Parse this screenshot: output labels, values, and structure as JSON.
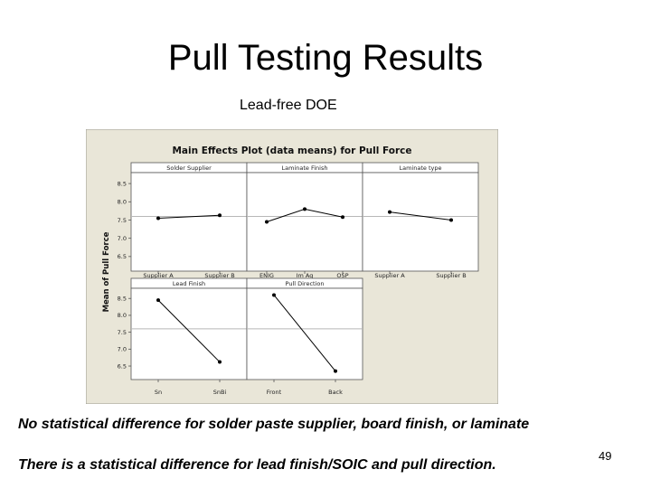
{
  "slide": {
    "title": "Pull Testing Results",
    "subtitle": "Lead-free DOE",
    "note1": "No statistical difference for solder paste supplier, board finish, or laminate",
    "note2": "There is a statistical difference for lead finish/SOIC and pull direction.",
    "page_number": "49"
  },
  "colors": {
    "panel_background": "#e9e6d8",
    "plot_background": "#ffffff",
    "grand_mean_line": "#b8b8b8",
    "line": "#000000"
  },
  "chart_data": {
    "type": "line",
    "title": "Main Effects Plot (data means) for Pull Force",
    "ylabel": "Mean of Pull Force",
    "ylim": [
      6.1,
      8.8
    ],
    "yticks": [
      "6.5",
      "7.0",
      "7.5",
      "8.0",
      "8.5"
    ],
    "grand_mean": 7.6,
    "grid": false,
    "panels": [
      {
        "name": "Solder Supplier",
        "categories": [
          "Supplier A",
          "Supplier B"
        ],
        "values": [
          7.55,
          7.63
        ]
      },
      {
        "name": "Laminate Finish",
        "categories": [
          "ENIG",
          "Im Ag",
          "OSP"
        ],
        "values": [
          7.45,
          7.8,
          7.58
        ]
      },
      {
        "name": "Laminate type",
        "categories": [
          "Supplier A",
          "Supplier B"
        ],
        "values": [
          7.72,
          7.5
        ]
      },
      {
        "name": "Lead Finish",
        "categories": [
          "Sn",
          "SnBi"
        ],
        "values": [
          8.45,
          6.62
        ]
      },
      {
        "name": "Pull Direction",
        "categories": [
          "Front",
          "Back"
        ],
        "values": [
          8.6,
          6.35
        ]
      }
    ]
  }
}
